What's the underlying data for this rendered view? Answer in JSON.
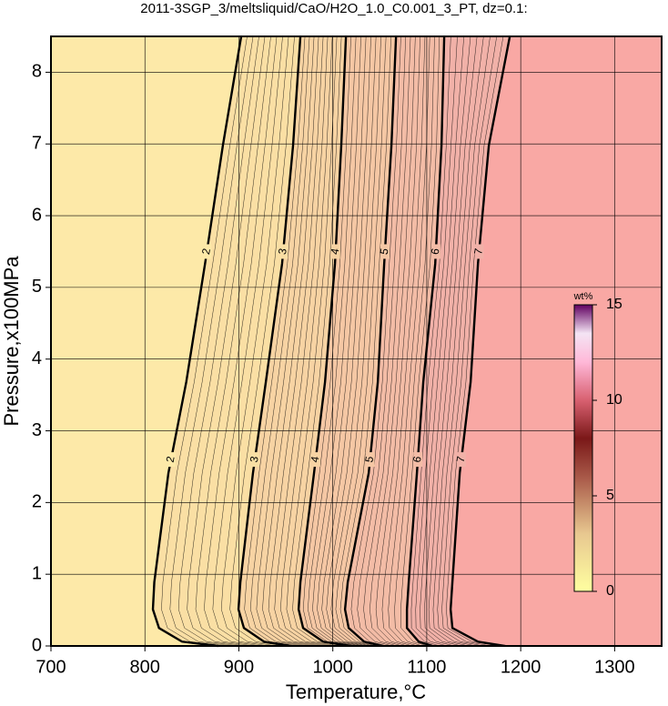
{
  "chart_data": {
    "type": "contour",
    "title": "2011-3SGP_3/meltsliquid/CaO/H2O_1.0_C0.001_3_PT, dz=0.1:",
    "x_label": "Temperature,°C",
    "y_label": "Pressure,x100MPa",
    "xlim": [
      700,
      1350
    ],
    "xticks": [
      700,
      800,
      900,
      1000,
      1100,
      1200,
      1300
    ],
    "ylim": [
      0,
      8.5
    ],
    "yticks": [
      0,
      1,
      2,
      3,
      4,
      5,
      6,
      7,
      8
    ],
    "grid": true,
    "line_color": "#000000",
    "band_colors": [
      "#fde9a8",
      "#fadfa4",
      "#f7d3a3",
      "#f5c7a4",
      "#f3bca6",
      "#f1b1a8",
      "#f9a8a4"
    ],
    "contours": [
      {
        "level": 2,
        "x": [
          902.5,
          883,
          864,
          844,
          825,
          810,
          808.5,
          815,
          839.5,
          878
        ],
        "y": [
          8.5,
          6.98,
          5.33,
          3.68,
          2.41,
          0.89,
          0.51,
          0.25,
          0.06,
          0
        ]
      },
      {
        "level": 3,
        "x": [
          965.5,
          957.7,
          946,
          928.7,
          915,
          901.6,
          899.6,
          905.4,
          926.7,
          955.8
        ],
        "y": [
          8.5,
          6.98,
          5.33,
          3.68,
          2.41,
          0.89,
          0.51,
          0.25,
          0.06,
          0
        ]
      },
      {
        "level": 4,
        "x": [
          1014,
          1009,
          1002.3,
          991.7,
          980,
          965.5,
          963.6,
          968.4,
          989.7,
          1018.8
        ],
        "y": [
          8.5,
          6.98,
          5.33,
          3.68,
          2.41,
          0.89,
          0.51,
          0.25,
          0.06,
          0
        ]
      },
      {
        "level": 5,
        "x": [
          1067.3,
          1062.4,
          1054.7,
          1047.9,
          1038.2,
          1015.9,
          1013,
          1016.9,
          1033.3,
          1052.7
        ],
        "y": [
          8.5,
          6.98,
          5.33,
          3.68,
          2.41,
          0.89,
          0.51,
          0.25,
          0.06,
          0
        ]
      },
      {
        "level": 6,
        "x": [
          1118.6,
          1115.7,
          1109,
          1096.3,
          1089.5,
          1080.8,
          1078.9,
          1078.9,
          1091.5,
          1106
        ],
        "y": [
          8.5,
          6.98,
          5.33,
          3.68,
          2.41,
          0.89,
          0.51,
          0.25,
          0.06,
          0
        ]
      },
      {
        "level": 7,
        "x": [
          1188.4,
          1166.1,
          1154.5,
          1146.7,
          1135.1,
          1127.3,
          1125.4,
          1127.3,
          1154.5,
          1183.6
        ],
        "y": [
          8.5,
          6.98,
          5.33,
          3.68,
          2.41,
          0.89,
          0.51,
          0.25,
          0.06,
          0
        ]
      }
    ],
    "colorbar": {
      "label": "wt%",
      "lim": [
        0,
        15
      ],
      "ticks": [
        0,
        5,
        10,
        15
      ],
      "stops": [
        {
          "value": 0,
          "color": "#ffffa0"
        },
        {
          "value": 3,
          "color": "#e8c890"
        },
        {
          "value": 6,
          "color": "#a85848"
        },
        {
          "value": 8,
          "color": "#7a1818"
        },
        {
          "value": 10,
          "color": "#d86070"
        },
        {
          "value": 12,
          "color": "#ffb8d8"
        },
        {
          "value": 13.5,
          "color": "#f4e4f4"
        },
        {
          "value": 15,
          "color": "#600060"
        }
      ]
    }
  }
}
